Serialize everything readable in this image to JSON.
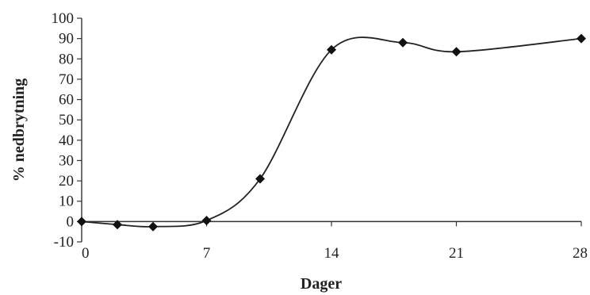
{
  "chart_data": {
    "type": "line",
    "title": "",
    "xlabel": "Dager",
    "ylabel": "% nedbrytning",
    "xlim": [
      0,
      28
    ],
    "ylim": [
      -10,
      100
    ],
    "x_ticks": [
      0,
      7,
      14,
      21,
      28
    ],
    "x_tick_labels": [
      "0",
      "7",
      "14",
      "21",
      "28"
    ],
    "y_ticks": [
      -10,
      0,
      10,
      20,
      30,
      40,
      50,
      60,
      70,
      80,
      90,
      100
    ],
    "y_tick_labels": [
      "-10",
      "0",
      "10",
      "20",
      "30",
      "40",
      "50",
      "60",
      "70",
      "80",
      "90",
      "100"
    ],
    "grid": false,
    "legend": "none",
    "marker": "diamond",
    "series": [
      {
        "x": [
          0,
          2,
          4,
          7,
          10,
          14,
          18,
          21,
          28
        ],
        "y": [
          0,
          -1.5,
          -2.5,
          0.5,
          21,
          84.5,
          88,
          83.5,
          90
        ]
      }
    ]
  }
}
